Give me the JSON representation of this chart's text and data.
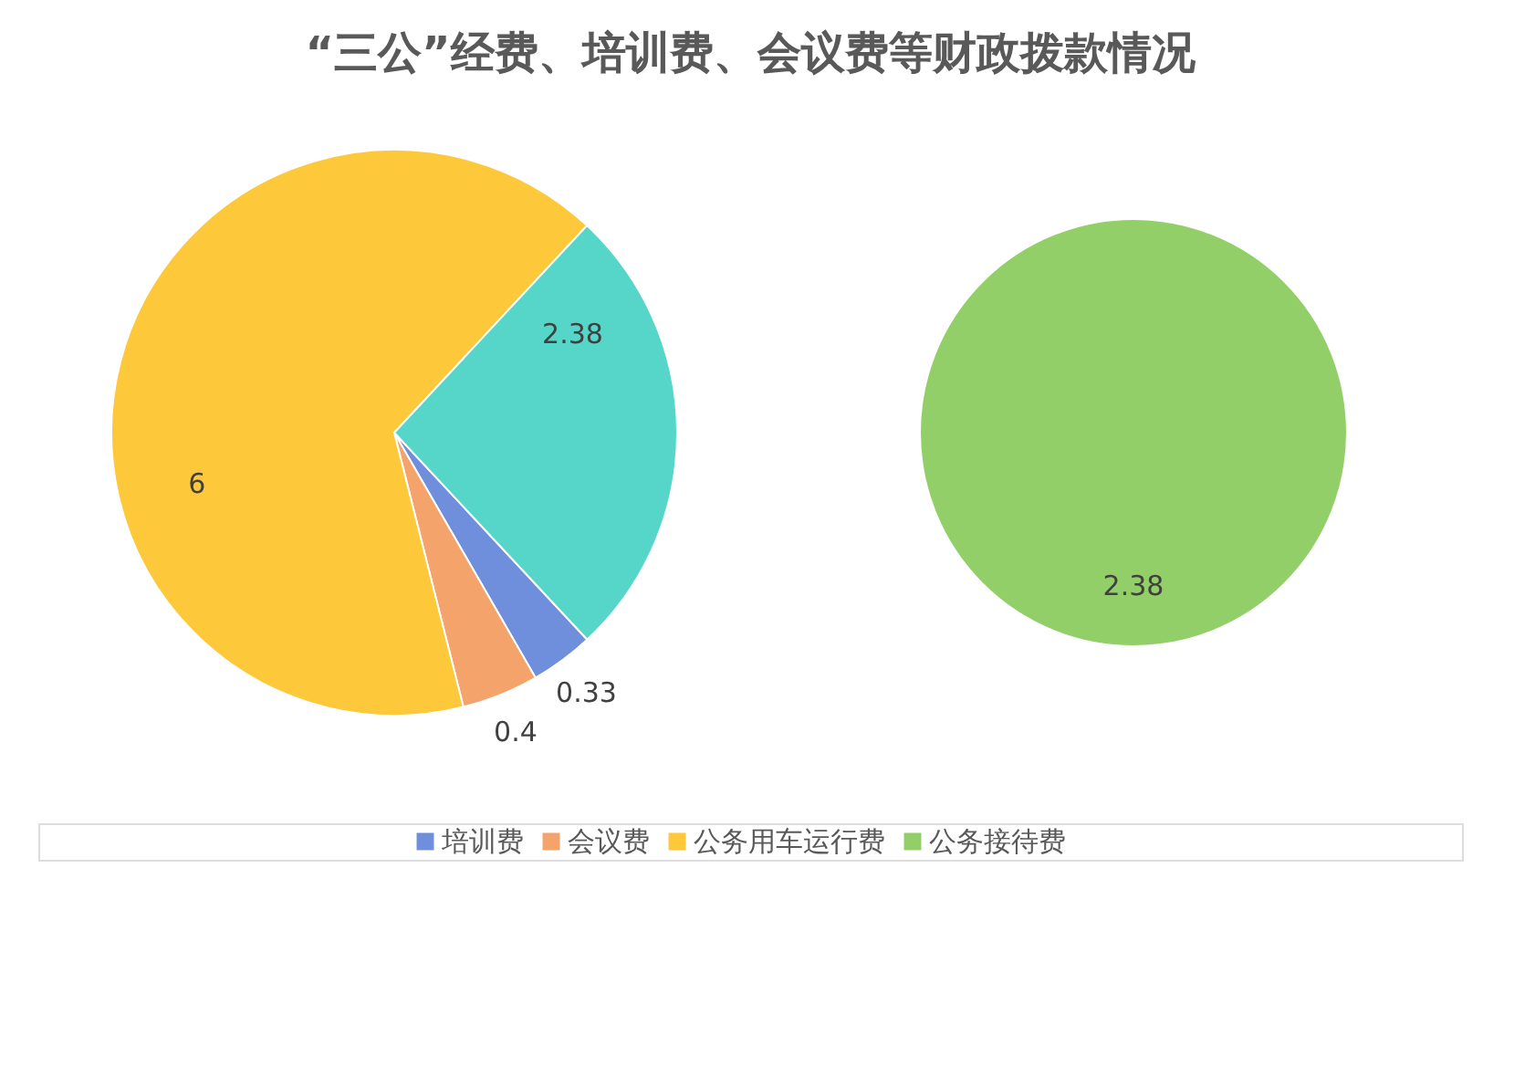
{
  "chart_data": [
    {
      "type": "pie",
      "title": "“三公”经费、培训费、会议费等财政拨款情况",
      "categories": [
        "培训费",
        "会议费",
        "公务用车运行费",
        null
      ],
      "values": [
        0.33,
        0.4,
        6,
        2.38
      ],
      "colors": [
        "#6f8fdc",
        "#f4a36a",
        "#fdc83a",
        "#56d6c9"
      ],
      "data_labels": true,
      "legend": "bottom"
    },
    {
      "type": "pie",
      "categories": [
        "公务接待费"
      ],
      "values": [
        2.38
      ],
      "colors": [
        "#93cf68"
      ],
      "data_labels": true,
      "legend": "bottom"
    }
  ]
}
